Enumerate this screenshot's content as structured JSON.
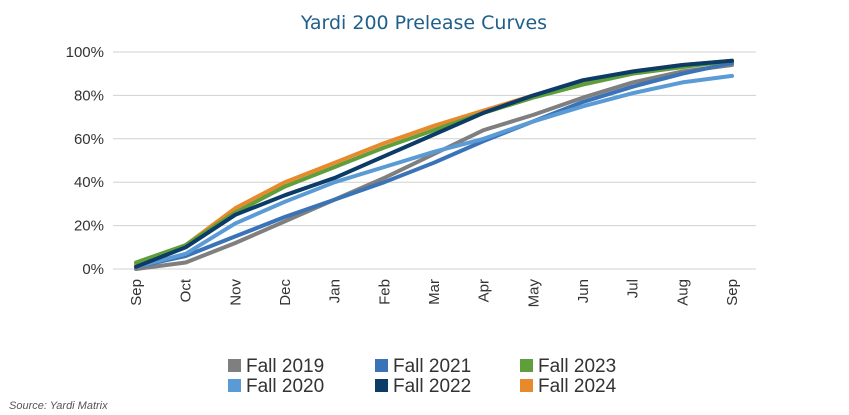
{
  "chart_data": {
    "type": "line",
    "title": "Yardi 200 Prelease Curves",
    "xlabel": "",
    "ylabel": "",
    "ylim": [
      0,
      100
    ],
    "y_ticks": [
      "0%",
      "20%",
      "40%",
      "60%",
      "80%",
      "100%"
    ],
    "y_tick_values": [
      0,
      20,
      40,
      60,
      80,
      100
    ],
    "categories": [
      "Sep",
      "Oct",
      "Nov",
      "Dec",
      "Jan",
      "Feb",
      "Mar",
      "Apr",
      "May",
      "Jun",
      "Jul",
      "Aug",
      "Sep"
    ],
    "grid": "horizontal",
    "legend_position": "bottom",
    "series": [
      {
        "name": "Fall 2019",
        "color": "#7f7f7f",
        "values": [
          0,
          3,
          12,
          22,
          32,
          42,
          53,
          64,
          71,
          79,
          86,
          91,
          94
        ]
      },
      {
        "name": "Fall 2020",
        "color": "#5b9bd5",
        "values": [
          1,
          7,
          21,
          31,
          40,
          47,
          54,
          60,
          68,
          75,
          81,
          86,
          89
        ]
      },
      {
        "name": "Fall 2021",
        "color": "#3a73b8",
        "values": [
          1,
          6,
          15,
          24,
          32,
          40,
          49,
          59,
          68,
          77,
          84,
          90,
          95
        ]
      },
      {
        "name": "Fall 2022",
        "color": "#0b3b66",
        "values": [
          1,
          10,
          25,
          34,
          42,
          52,
          62,
          72,
          80,
          87,
          91,
          94,
          96
        ]
      },
      {
        "name": "Fall 2023",
        "color": "#5f9e3a",
        "values": [
          3,
          11,
          26,
          38,
          47,
          56,
          64,
          72,
          79,
          85,
          90,
          93,
          96
        ]
      },
      {
        "name": "Fall 2024",
        "color": "#e8892b",
        "values": [
          2,
          11,
          28,
          40,
          49,
          58,
          66,
          73,
          80,
          86,
          91,
          94,
          96
        ]
      }
    ],
    "draw_order": [
      "Fall 2019",
      "Fall 2021",
      "Fall 2020",
      "Fall 2024",
      "Fall 2023",
      "Fall 2022"
    ],
    "legend_columns": [
      [
        "Fall 2019",
        "Fall 2020"
      ],
      [
        "Fall 2021",
        "Fall 2022"
      ],
      [
        "Fall 2023",
        "Fall 2024"
      ]
    ]
  },
  "source": "Source: Yardi Matrix"
}
